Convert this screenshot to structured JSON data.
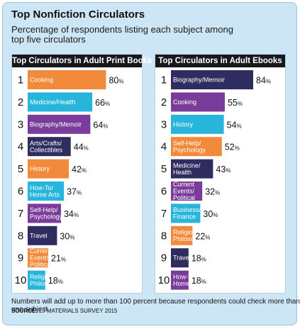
{
  "title": "Top Nonfiction Circulators",
  "subtitle": "Percentage of respondents listing each subject among top five circulators",
  "note": "Numbers will add up to more than 100 percent because respondents could check more than one subject",
  "source": {
    "label": "SOURCE:",
    "pub": "LJ",
    "rest": "MATERIALS SURVEY 2015"
  },
  "unit": "%",
  "colors": {
    "orange": "#f28a3c",
    "cyan": "#27b5dc",
    "purple": "#7a3c9b",
    "navy": "#2f2d5f",
    "header": "#17181c"
  },
  "chart_data": [
    {
      "type": "bar",
      "title": "Top Circulators in Adult Print Books",
      "orientation": "horizontal",
      "xlim": [
        0,
        84
      ],
      "categories": [
        "Cooking",
        "Medicine/Health",
        "Biography/Memoir",
        "Arts/Crafts/\nCollectibles",
        "History",
        "How-To/\nHome Arts",
        "Self-Help/\nPsychology",
        "Travel",
        "Current\nEvents/\nPolitical",
        "Religion/\nPhilosophy"
      ],
      "values": [
        80,
        66,
        64,
        44,
        42,
        37,
        34,
        30,
        21,
        18
      ],
      "ranks": [
        1,
        2,
        3,
        4,
        5,
        6,
        7,
        8,
        9,
        10
      ],
      "bar_colors": [
        "orange",
        "cyan",
        "purple",
        "navy",
        "orange",
        "cyan",
        "purple",
        "navy",
        "orange",
        "cyan"
      ]
    },
    {
      "type": "bar",
      "title": "Top Circulators in Adult Ebooks",
      "orientation": "horizontal",
      "xlim": [
        0,
        84
      ],
      "categories": [
        "Biography/Memoir",
        "Cooking",
        "History",
        "Self-Help/\nPsychology",
        "Medicine/\nHealth",
        "Current\nEvents/\nPolitical",
        "Business/\nFinance",
        "Religion/\nPhilosophy",
        "Travel",
        "How-To/\nHome Arts"
      ],
      "values": [
        84,
        55,
        54,
        52,
        43,
        32,
        30,
        22,
        18,
        18
      ],
      "ranks": [
        1,
        2,
        3,
        4,
        5,
        6,
        7,
        8,
        9,
        10
      ],
      "bar_colors": [
        "navy",
        "purple",
        "cyan",
        "orange",
        "navy",
        "purple",
        "cyan",
        "orange",
        "navy",
        "purple"
      ]
    }
  ]
}
